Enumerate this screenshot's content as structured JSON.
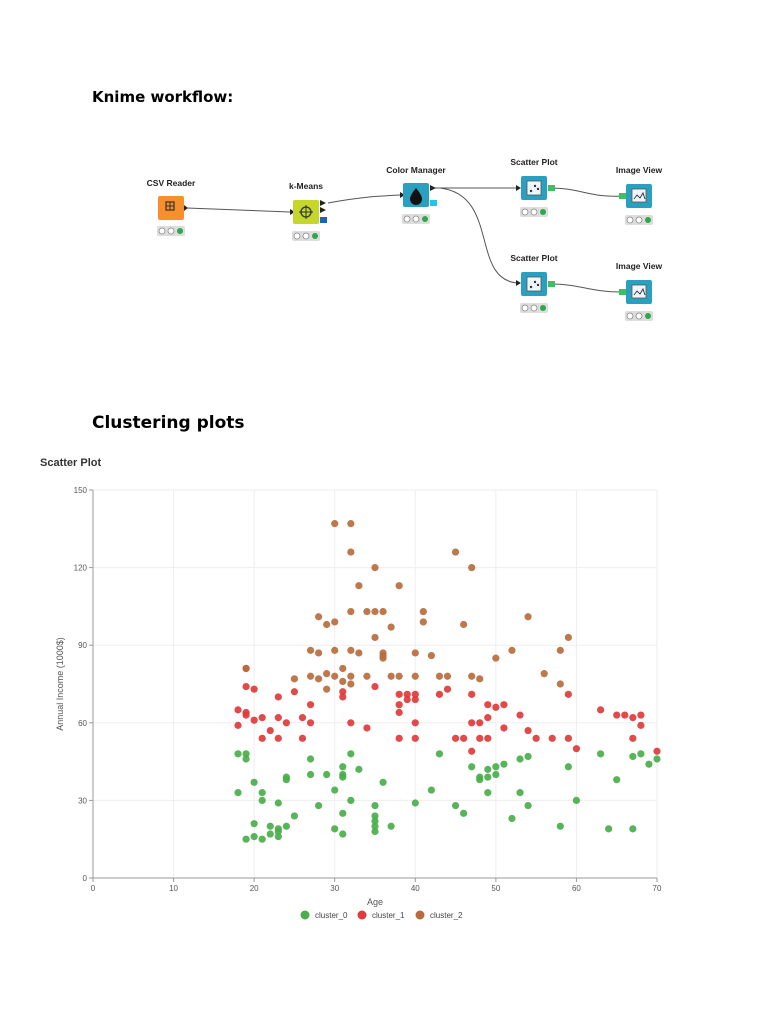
{
  "headings": {
    "workflow": "Knime workflow:",
    "plots": "Clustering plots"
  },
  "workflow": {
    "nodes": [
      {
        "id": "csv",
        "label": "CSV Reader",
        "color": "#f7902b"
      },
      {
        "id": "km",
        "label": "k-Means",
        "color": "#c5d72b"
      },
      {
        "id": "cm",
        "label": "Color Manager",
        "color": "#2aa0c0"
      },
      {
        "id": "sp1",
        "label": "Scatter Plot",
        "color": "#2aa0c0"
      },
      {
        "id": "iv1",
        "label": "Image View",
        "color": "#2aa0c0"
      },
      {
        "id": "sp2",
        "label": "Scatter Plot",
        "color": "#2aa0c0"
      },
      {
        "id": "iv2",
        "label": "Image View",
        "color": "#2aa0c0"
      }
    ]
  },
  "chart_title": "Scatter Plot",
  "chart_data": {
    "type": "scatter",
    "xlabel": "Age",
    "ylabel": "Annual Income (1000$)",
    "xlim": [
      0,
      70
    ],
    "ylim": [
      0,
      150
    ],
    "xticks": [
      0,
      10,
      20,
      30,
      40,
      50,
      60,
      70
    ],
    "yticks": [
      0,
      30,
      60,
      90,
      120,
      150
    ],
    "grid": true,
    "legend": "bottom",
    "series": [
      {
        "name": "cluster_0",
        "color": "#4aae4a",
        "points": [
          [
            18,
            48
          ],
          [
            18,
            33
          ],
          [
            19,
            48
          ],
          [
            19,
            46
          ],
          [
            19,
            15
          ],
          [
            20,
            37
          ],
          [
            20,
            21
          ],
          [
            20,
            16
          ],
          [
            21,
            33
          ],
          [
            21,
            30
          ],
          [
            21,
            15
          ],
          [
            22,
            20
          ],
          [
            22,
            17
          ],
          [
            23,
            29
          ],
          [
            23,
            19
          ],
          [
            23,
            18
          ],
          [
            23,
            16
          ],
          [
            24,
            39
          ],
          [
            24,
            38
          ],
          [
            24,
            20
          ],
          [
            25,
            24
          ],
          [
            27,
            46
          ],
          [
            27,
            40
          ],
          [
            28,
            28
          ],
          [
            29,
            40
          ],
          [
            30,
            34
          ],
          [
            30,
            19
          ],
          [
            31,
            40
          ],
          [
            31,
            43
          ],
          [
            31,
            39
          ],
          [
            31,
            17
          ],
          [
            31,
            25
          ],
          [
            32,
            48
          ],
          [
            32,
            30
          ],
          [
            33,
            42
          ],
          [
            35,
            28
          ],
          [
            35,
            24
          ],
          [
            35,
            22
          ],
          [
            35,
            20
          ],
          [
            35,
            18
          ],
          [
            36,
            37
          ],
          [
            37,
            20
          ],
          [
            40,
            29
          ],
          [
            42,
            34
          ],
          [
            43,
            48
          ],
          [
            45,
            28
          ],
          [
            46,
            25
          ],
          [
            47,
            43
          ],
          [
            48,
            39
          ],
          [
            48,
            38
          ],
          [
            49,
            42
          ],
          [
            49,
            39
          ],
          [
            49,
            33
          ],
          [
            50,
            40
          ],
          [
            50,
            43
          ],
          [
            51,
            44
          ],
          [
            52,
            23
          ],
          [
            53,
            46
          ],
          [
            53,
            33
          ],
          [
            54,
            47
          ],
          [
            54,
            28
          ],
          [
            58,
            20
          ],
          [
            59,
            43
          ],
          [
            60,
            30
          ],
          [
            63,
            48
          ],
          [
            64,
            19
          ],
          [
            65,
            38
          ],
          [
            67,
            47
          ],
          [
            67,
            19
          ],
          [
            68,
            48
          ],
          [
            69,
            44
          ],
          [
            70,
            46
          ]
        ]
      },
      {
        "name": "cluster_1",
        "color": "#e03a3a",
        "points": [
          [
            18,
            65
          ],
          [
            18,
            59
          ],
          [
            19,
            81
          ],
          [
            19,
            74
          ],
          [
            19,
            64
          ],
          [
            19,
            63
          ],
          [
            20,
            73
          ],
          [
            20,
            61
          ],
          [
            21,
            62
          ],
          [
            21,
            54
          ],
          [
            22,
            57
          ],
          [
            23,
            70
          ],
          [
            23,
            62
          ],
          [
            23,
            54
          ],
          [
            24,
            60
          ],
          [
            25,
            72
          ],
          [
            26,
            62
          ],
          [
            26,
            54
          ],
          [
            27,
            67
          ],
          [
            27,
            60
          ],
          [
            31,
            72
          ],
          [
            31,
            70
          ],
          [
            32,
            60
          ],
          [
            34,
            58
          ],
          [
            35,
            74
          ],
          [
            38,
            71
          ],
          [
            38,
            67
          ],
          [
            38,
            64
          ],
          [
            38,
            54
          ],
          [
            39,
            71
          ],
          [
            39,
            69
          ],
          [
            40,
            71
          ],
          [
            40,
            69
          ],
          [
            40,
            60
          ],
          [
            40,
            54
          ],
          [
            43,
            71
          ],
          [
            44,
            73
          ],
          [
            45,
            54
          ],
          [
            46,
            54
          ],
          [
            47,
            49
          ],
          [
            47,
            60
          ],
          [
            47,
            71
          ],
          [
            48,
            60
          ],
          [
            48,
            54
          ],
          [
            49,
            67
          ],
          [
            49,
            62
          ],
          [
            49,
            54
          ],
          [
            50,
            66
          ],
          [
            51,
            67
          ],
          [
            51,
            58
          ],
          [
            53,
            63
          ],
          [
            54,
            57
          ],
          [
            55,
            54
          ],
          [
            57,
            54
          ],
          [
            59,
            71
          ],
          [
            59,
            54
          ],
          [
            60,
            50
          ],
          [
            63,
            65
          ],
          [
            65,
            63
          ],
          [
            66,
            63
          ],
          [
            67,
            62
          ],
          [
            67,
            54
          ],
          [
            68,
            63
          ],
          [
            68,
            59
          ],
          [
            70,
            49
          ]
        ]
      },
      {
        "name": "cluster_2",
        "color": "#b86c3e",
        "points": [
          [
            19,
            81
          ],
          [
            25,
            77
          ],
          [
            27,
            88
          ],
          [
            27,
            78
          ],
          [
            28,
            101
          ],
          [
            28,
            87
          ],
          [
            28,
            77
          ],
          [
            29,
            98
          ],
          [
            29,
            79
          ],
          [
            29,
            73
          ],
          [
            30,
            137
          ],
          [
            30,
            99
          ],
          [
            30,
            88
          ],
          [
            30,
            78
          ],
          [
            31,
            81
          ],
          [
            31,
            76
          ],
          [
            32,
            137
          ],
          [
            32,
            126
          ],
          [
            32,
            103
          ],
          [
            32,
            88
          ],
          [
            32,
            78
          ],
          [
            32,
            75
          ],
          [
            33,
            113
          ],
          [
            33,
            87
          ],
          [
            34,
            103
          ],
          [
            34,
            78
          ],
          [
            35,
            120
          ],
          [
            35,
            103
          ],
          [
            35,
            93
          ],
          [
            36,
            103
          ],
          [
            36,
            87
          ],
          [
            36,
            86
          ],
          [
            36,
            85
          ],
          [
            37,
            97
          ],
          [
            37,
            78
          ],
          [
            38,
            113
          ],
          [
            38,
            78
          ],
          [
            40,
            87
          ],
          [
            40,
            78
          ],
          [
            41,
            103
          ],
          [
            41,
            99
          ],
          [
            42,
            86
          ],
          [
            43,
            78
          ],
          [
            44,
            78
          ],
          [
            45,
            126
          ],
          [
            46,
            98
          ],
          [
            47,
            120
          ],
          [
            47,
            78
          ],
          [
            48,
            77
          ],
          [
            50,
            85
          ],
          [
            52,
            88
          ],
          [
            54,
            101
          ],
          [
            56,
            79
          ],
          [
            58,
            75
          ],
          [
            58,
            88
          ],
          [
            59,
            93
          ]
        ]
      }
    ]
  }
}
